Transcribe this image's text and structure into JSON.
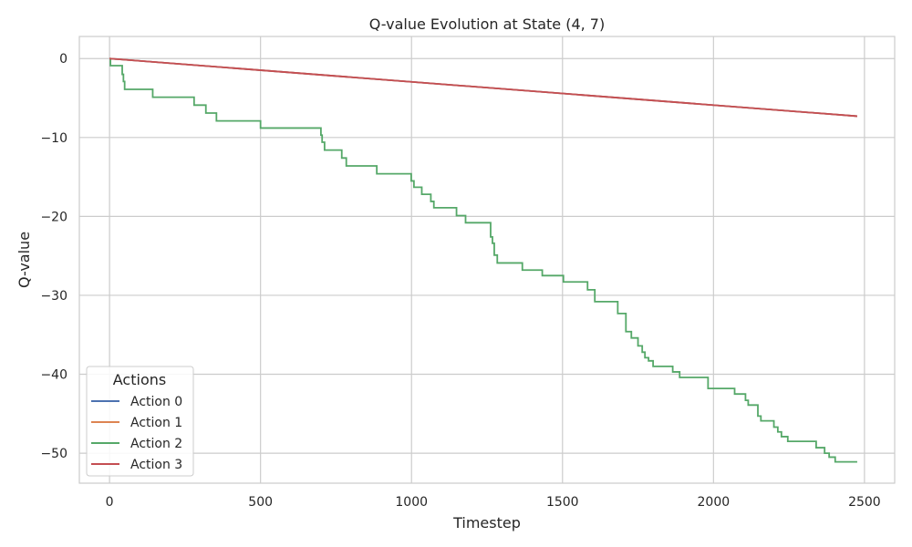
{
  "chart_data": {
    "type": "line",
    "title": "Q-value Evolution at State (4, 7)",
    "xlabel": "Timestep",
    "ylabel": "Q-value",
    "xlim": [
      -100,
      2600
    ],
    "ylim": [
      -53.8,
      2.8
    ],
    "xticks": [
      0,
      500,
      1000,
      1500,
      2000,
      2500
    ],
    "yticks": [
      0,
      -10,
      -20,
      -30,
      -40,
      -50
    ],
    "grid": true,
    "legend": {
      "title": "Actions",
      "placement": "lower-left"
    },
    "series": [
      {
        "name": "Action 0",
        "color": "#4c72b0",
        "draw": "linear",
        "x": [
          0,
          2476
        ],
        "y": [
          0,
          -7.3
        ]
      },
      {
        "name": "Action 1",
        "color": "#dd8452",
        "draw": "linear",
        "x": [
          0,
          2476
        ],
        "y": [
          0,
          -7.3
        ]
      },
      {
        "name": "Action 2",
        "color": "#55a868",
        "draw": "steps",
        "x": [
          0,
          3,
          42,
          46,
          50,
          53,
          57,
          143,
          280,
          319,
          354,
          500,
          700,
          704,
          712,
          718,
          769,
          784,
          885,
          999,
          1008,
          1034,
          1064,
          1074,
          1149,
          1179,
          1262,
          1268,
          1274,
          1284,
          1295,
          1367,
          1433,
          1503,
          1583,
          1607,
          1683,
          1710,
          1715,
          1728,
          1750,
          1764,
          1773,
          1785,
          1800,
          1865,
          1888,
          1982,
          2070,
          2106,
          2115,
          2127,
          2147,
          2157,
          2200,
          2213,
          2225,
          2236,
          2246,
          2269,
          2340,
          2368,
          2383,
          2403,
          2428,
          2476
        ],
        "y": [
          0,
          -0.9,
          -2.0,
          -2.9,
          -3.9,
          -3.9,
          -3.9,
          -4.9,
          -5.9,
          -6.9,
          -7.9,
          -8.8,
          -9.7,
          -10.6,
          -11.6,
          -11.6,
          -12.6,
          -13.6,
          -14.6,
          -15.5,
          -16.3,
          -17.2,
          -18.1,
          -18.9,
          -19.9,
          -20.8,
          -22.6,
          -23.4,
          -24.9,
          -25.9,
          -25.9,
          -26.8,
          -27.5,
          -28.3,
          -29.3,
          -30.8,
          -32.3,
          -34.6,
          -34.6,
          -35.4,
          -36.4,
          -37.2,
          -37.9,
          -38.3,
          -39.0,
          -39.7,
          -40.4,
          -41.8,
          -42.5,
          -43.3,
          -43.9,
          -43.9,
          -45.3,
          -45.9,
          -46.7,
          -47.3,
          -47.9,
          -47.9,
          -48.5,
          -48.5,
          -49.3,
          -50.0,
          -50.5,
          -51.1,
          -51.1,
          -51.1
        ]
      },
      {
        "name": "Action 3",
        "color": "#c44e52",
        "draw": "linear",
        "x": [
          0,
          2476
        ],
        "y": [
          0,
          -7.3
        ]
      }
    ]
  }
}
